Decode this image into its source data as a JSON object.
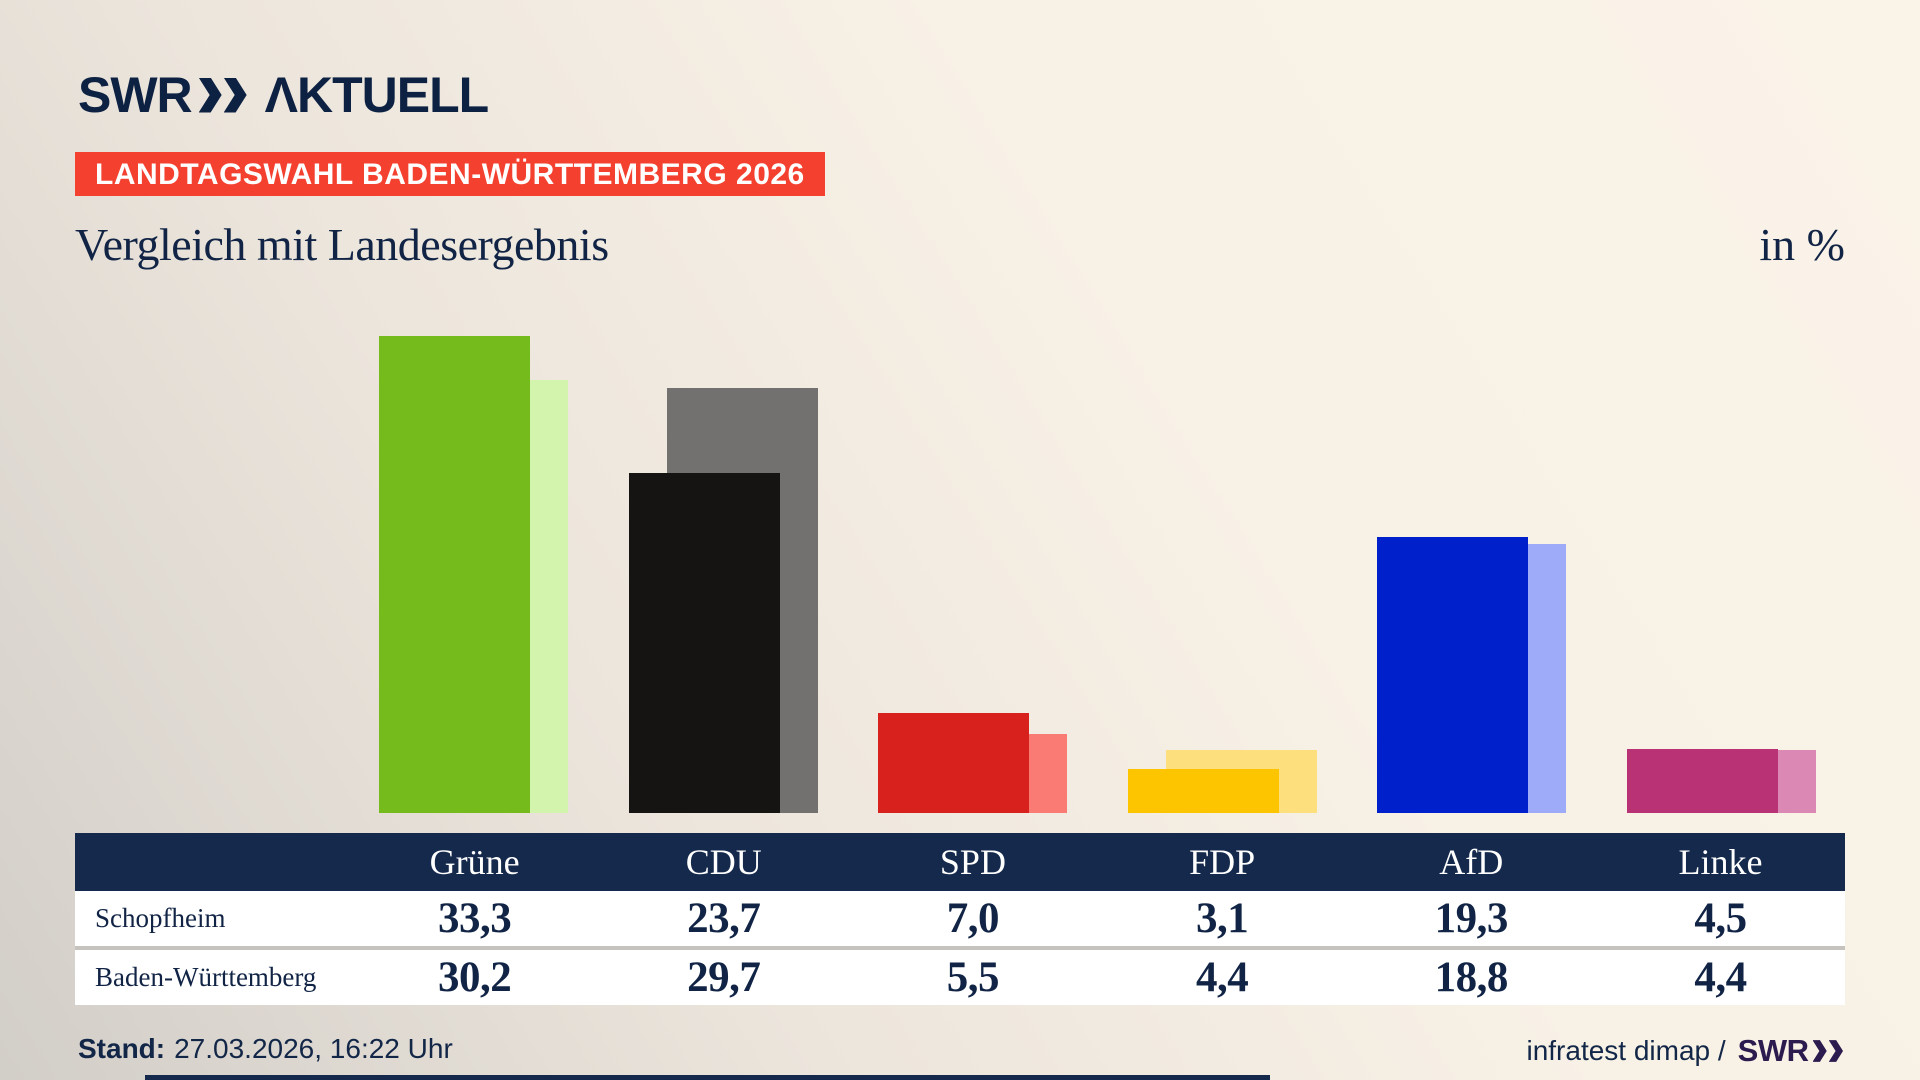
{
  "header": {
    "brand": "SWR",
    "brand_product": "ΛKTUELL",
    "banner": "LANDTAGSWAHL BADEN-WÜRTTEMBERG 2026",
    "title": "Vergleich mit Landesergebnis",
    "unit": "in %"
  },
  "footer": {
    "stand_label": "Stand:",
    "stand_value": "27.03.2026, 16:22 Uhr",
    "source_text": "infratest dimap /",
    "source_brand": "SWR"
  },
  "colors": {
    "navy_text": "#112445",
    "banner_red": "#f4402f",
    "table_header_bg": "#14294b",
    "footer_brand_purple": "#2b1b4e",
    "divider_gray": "#c6c3be"
  },
  "chart_data": {
    "type": "bar",
    "title": "Vergleich mit Landesergebnis",
    "unit": "in %",
    "grid": false,
    "legend": "table-rows",
    "ylim": [
      0,
      35
    ],
    "categories": [
      "Grüne",
      "CDU",
      "SPD",
      "FDP",
      "AfD",
      "Linke"
    ],
    "series": [
      {
        "name": "Schopfheim",
        "role": "main",
        "values": [
          33.3,
          23.7,
          7.0,
          3.1,
          19.3,
          4.5
        ],
        "labels": [
          "33,3",
          "23,7",
          "7,0",
          "3,1",
          "19,3",
          "4,5"
        ]
      },
      {
        "name": "Baden-Württemberg",
        "role": "compare",
        "values": [
          30.2,
          29.7,
          5.5,
          4.4,
          18.8,
          4.4
        ],
        "labels": [
          "30,2",
          "29,7",
          "5,5",
          "4,4",
          "18,8",
          "4,4"
        ]
      }
    ],
    "party_colors_main": [
      "#76bb1c",
      "#151413",
      "#d8201d",
      "#fdc400",
      "#0020cb",
      "#b93276"
    ],
    "party_colors_compare": [
      "#d3f4ac",
      "#727170",
      "#f97b74",
      "#fde07d",
      "#9dabf8",
      "#dc88b4"
    ]
  }
}
